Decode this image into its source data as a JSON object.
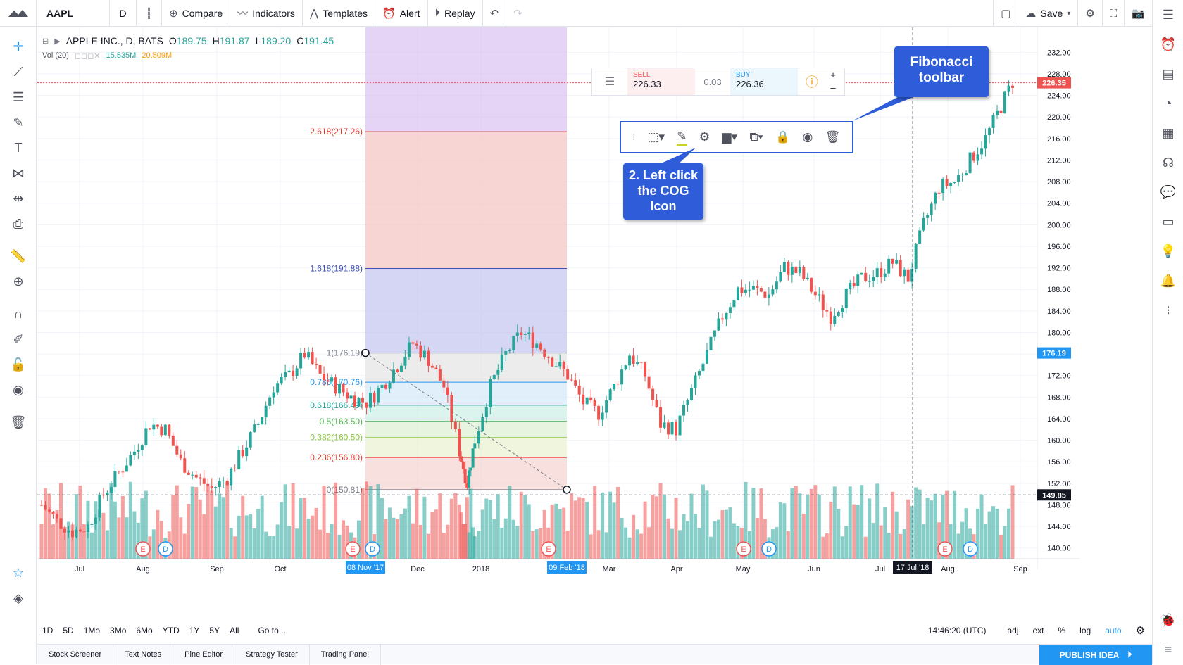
{
  "topbar": {
    "symbol": "AAPL",
    "interval": "D",
    "compare": "Compare",
    "indicators": "Indicators",
    "templates": "Templates",
    "alert": "Alert",
    "replay": "Replay",
    "save": "Save"
  },
  "legend": {
    "title": "APPLE INC., D, BATS",
    "open_label": "O",
    "open": "189.75",
    "high_label": "H",
    "high": "191.87",
    "low_label": "L",
    "low": "189.20",
    "close_label": "C",
    "close": "191.45",
    "vol_label": "Vol (20)",
    "vol1": "15.535M",
    "vol2": "20.509M"
  },
  "trade": {
    "sell_label": "SELL",
    "sell_price": "226.33",
    "spread": "0.03",
    "buy_label": "BUY",
    "buy_price": "226.36"
  },
  "callouts": {
    "fib_toolbar": "Fibonacci toolbar",
    "cog_instruction": "2. Left click the COG Icon"
  },
  "chart_data": {
    "type": "candlestick",
    "y_axis": [
      "232.00",
      "228.00",
      "224.00",
      "220.00",
      "216.00",
      "212.00",
      "208.00",
      "204.00",
      "200.00",
      "196.00",
      "192.00",
      "188.00",
      "184.00",
      "180.00",
      "176.00",
      "172.00",
      "168.00",
      "164.00",
      "160.00",
      "156.00",
      "152.00",
      "148.00",
      "144.00",
      "140.00"
    ],
    "ylim": [
      138,
      234
    ],
    "x_axis": [
      "Jul",
      "Aug",
      "Sep",
      "Oct",
      "Dec",
      "2018",
      "Mar",
      "Apr",
      "May",
      "Jun",
      "Jul",
      "Aug",
      "Sep"
    ],
    "price_tags": [
      {
        "value": "226.35",
        "color": "#ef5350"
      },
      {
        "value": "176.19",
        "color": "#2196f3"
      },
      {
        "value": "149.85",
        "color": "#131722"
      }
    ],
    "date_tags": [
      "08 Nov '17",
      "09 Feb '18",
      "17 Jul '18"
    ],
    "fib_levels": [
      {
        "label": "2.618(217.26)",
        "value": 217.26,
        "color": "#e53935"
      },
      {
        "label": "1.618(191.88)",
        "value": 191.88,
        "color": "#3f51b5"
      },
      {
        "label": "1(176.19)",
        "value": 176.19,
        "color": "#787b86"
      },
      {
        "label": "0.786(170.76)",
        "value": 170.76,
        "color": "#2196f3"
      },
      {
        "label": "0.618(166.49)",
        "value": 166.49,
        "color": "#26a69a"
      },
      {
        "label": "0.5(163.50)",
        "value": 163.5,
        "color": "#4caf50"
      },
      {
        "label": "0.382(160.50)",
        "value": 160.5,
        "color": "#8bc34a"
      },
      {
        "label": "0.236(156.80)",
        "value": 156.8,
        "color": "#e53935"
      },
      {
        "label": "0(150.81)",
        "value": 150.81,
        "color": "#787b86"
      }
    ],
    "price_path": [
      [
        0,
        148
      ],
      [
        10,
        145
      ],
      [
        20,
        143
      ],
      [
        30,
        144
      ],
      [
        40,
        150
      ],
      [
        50,
        154
      ],
      [
        60,
        158
      ],
      [
        70,
        163
      ],
      [
        80,
        162
      ],
      [
        90,
        156
      ],
      [
        100,
        153
      ],
      [
        110,
        151
      ],
      [
        120,
        153
      ],
      [
        130,
        158
      ],
      [
        140,
        163
      ],
      [
        150,
        170
      ],
      [
        160,
        172
      ],
      [
        170,
        176
      ],
      [
        180,
        172
      ],
      [
        190,
        170
      ],
      [
        200,
        168
      ],
      [
        210,
        167
      ],
      [
        220,
        170
      ],
      [
        230,
        174
      ],
      [
        240,
        178
      ],
      [
        250,
        175
      ],
      [
        260,
        170
      ],
      [
        270,
        158
      ],
      [
        275,
        152
      ],
      [
        280,
        160
      ],
      [
        290,
        170
      ],
      [
        300,
        176
      ],
      [
        310,
        180
      ],
      [
        320,
        178
      ],
      [
        330,
        175
      ],
      [
        340,
        172
      ],
      [
        350,
        167
      ],
      [
        360,
        165
      ],
      [
        370,
        170
      ],
      [
        380,
        176
      ],
      [
        390,
        172
      ],
      [
        400,
        163
      ],
      [
        410,
        162
      ],
      [
        420,
        169
      ],
      [
        430,
        176
      ],
      [
        440,
        183
      ],
      [
        450,
        188
      ],
      [
        460,
        188
      ],
      [
        470,
        187
      ],
      [
        480,
        192
      ],
      [
        490,
        191
      ],
      [
        500,
        187
      ],
      [
        510,
        183
      ],
      [
        520,
        187
      ],
      [
        530,
        190
      ],
      [
        540,
        191
      ],
      [
        550,
        193
      ],
      [
        560,
        190
      ],
      [
        570,
        200
      ],
      [
        580,
        207
      ],
      [
        590,
        208
      ],
      [
        600,
        212
      ],
      [
        610,
        216
      ],
      [
        620,
        222
      ],
      [
        630,
        228
      ]
    ]
  },
  "bottom": {
    "ranges": [
      "1D",
      "5D",
      "1Mo",
      "3Mo",
      "6Mo",
      "YTD",
      "1Y",
      "5Y",
      "All"
    ],
    "goto": "Go to...",
    "time": "14:46:20 (UTC)",
    "adj": "adj",
    "ext": "ext",
    "pct": "%",
    "log": "log",
    "auto": "auto"
  },
  "footer": {
    "tabs": [
      "Stock Screener",
      "Text Notes",
      "Pine Editor",
      "Strategy Tester",
      "Trading Panel"
    ],
    "publish": "PUBLISH IDEA"
  }
}
